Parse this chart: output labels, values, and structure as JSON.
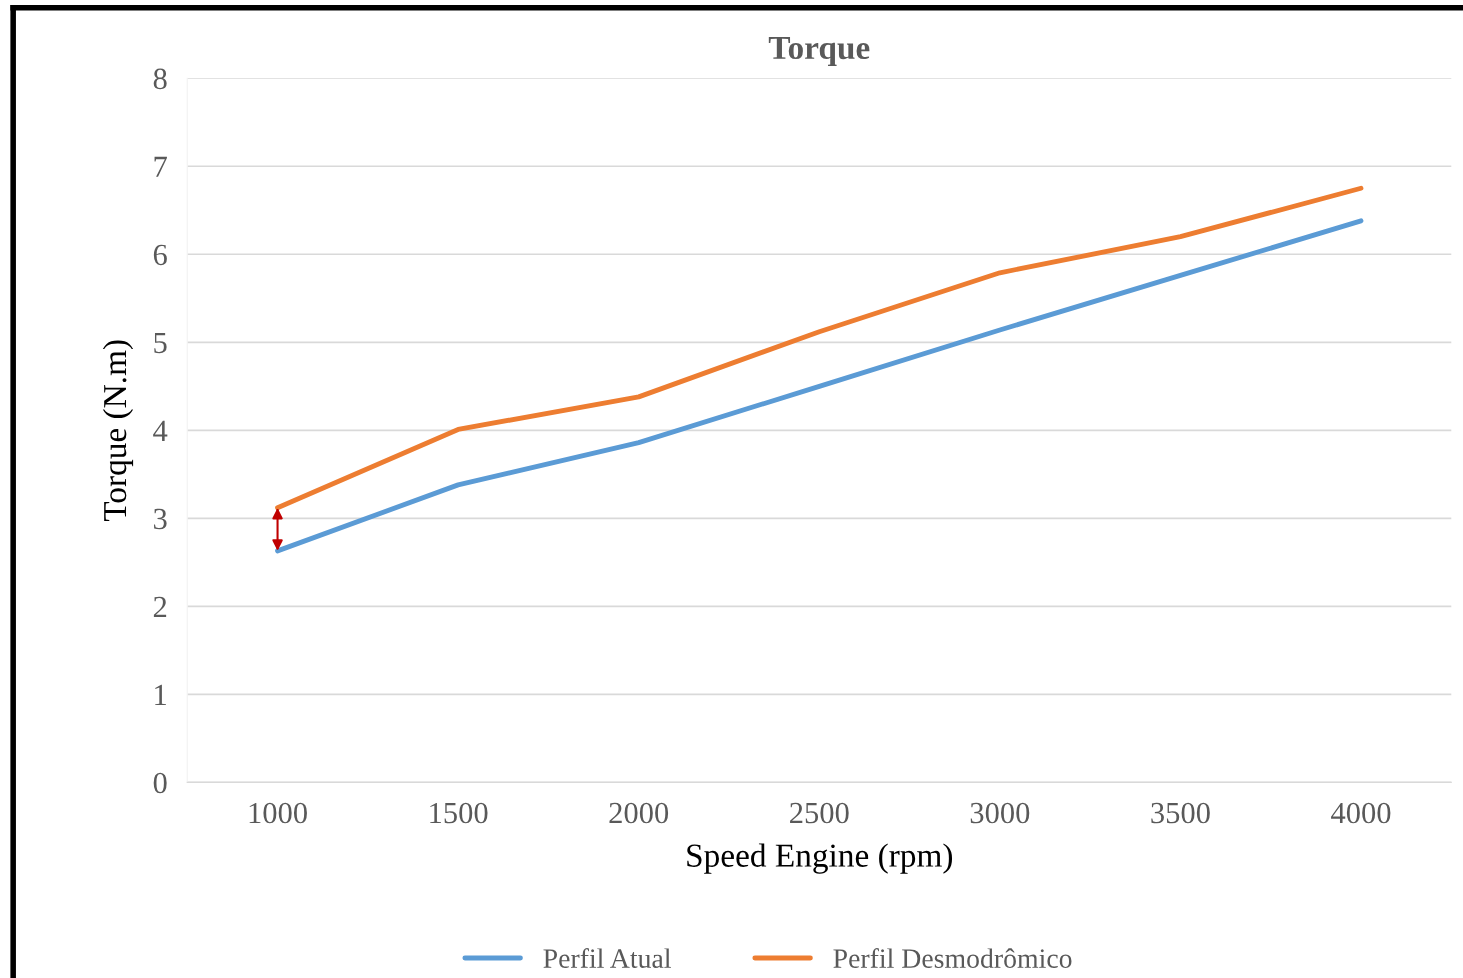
{
  "chart_data": {
    "type": "line",
    "title": "Torque",
    "xlabel": "Speed Engine (rpm)",
    "ylabel": "Torque (N.m)",
    "categories": [
      "1000",
      "1500",
      "2000",
      "2500",
      "3000",
      "3500",
      "4000"
    ],
    "series": [
      {
        "name": "Perfil Atual",
        "color": "#5b9bd5",
        "values": [
          2.63,
          3.38,
          3.86,
          4.5,
          5.14,
          5.76,
          6.38
        ]
      },
      {
        "name": "Perfil Desmodrômico",
        "color": "#ed7d31",
        "values": [
          3.12,
          4.01,
          4.38,
          5.12,
          5.79,
          6.2,
          6.75
        ]
      }
    ],
    "ylim": [
      0,
      8
    ],
    "yticks": [
      0,
      1,
      2,
      3,
      4,
      5,
      6,
      7,
      8
    ],
    "grid": "y",
    "legend": "bottom",
    "marker": "none",
    "line_style": "solid"
  }
}
